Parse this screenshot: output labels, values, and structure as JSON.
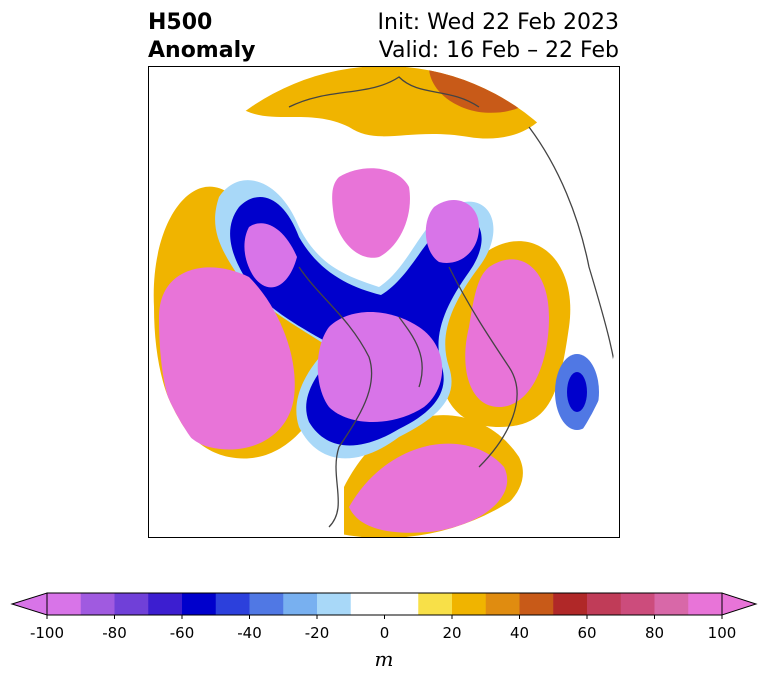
{
  "title": {
    "left_line1": "H500",
    "left_line2": "Anomaly",
    "right_line1": "Init: Wed 22 Feb 2023",
    "right_line2": "Valid: 16 Feb – 22 Feb"
  },
  "map": {
    "projection": "north-polar-stereographic",
    "field": "500 hPa geopotential height anomaly",
    "features": [
      "coastlines",
      "country-borders",
      "state-province-borders"
    ]
  },
  "colorbar": {
    "unit": "m",
    "extend": "both",
    "tick_labels": [
      "-100",
      "-80",
      "-60",
      "-40",
      "-20",
      "0",
      "20",
      "40",
      "60",
      "80",
      "100"
    ],
    "levels": [
      -100,
      -90,
      -80,
      -70,
      -60,
      -50,
      -40,
      -30,
      -20,
      -10,
      10,
      20,
      30,
      40,
      50,
      60,
      70,
      80,
      90,
      100
    ],
    "under_color": "#d874e8",
    "over_color": "#e874d8",
    "colors": [
      "#d874e8",
      "#a05ae0",
      "#7040d8",
      "#3c1ed0",
      "#0000cc",
      "#2c40dc",
      "#5078e4",
      "#78b0f0",
      "#a8d8f8",
      "#ffffff",
      "#f8e048",
      "#f0b400",
      "#e08c10",
      "#c85a18",
      "#b02828",
      "#c03c58",
      "#cc4c7c",
      "#d868a8",
      "#e874d8"
    ]
  }
}
